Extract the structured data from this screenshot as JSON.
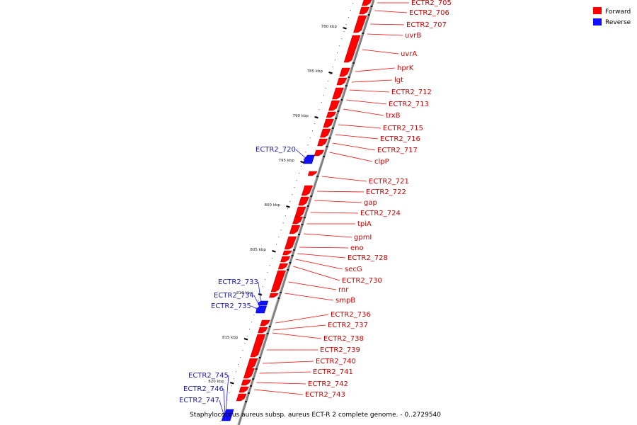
{
  "caption": "Staphylococcus aureus subsp. aureus ECT-R 2 complete genome. - 0..2729540",
  "legend": [
    {
      "label": "Forward",
      "color": "#ff0000"
    },
    {
      "label": "Reverse",
      "color": "#1010ff"
    }
  ],
  "colors": {
    "forward": "#ff0000",
    "reverse": "#1010ff",
    "backbone": "#808080",
    "label_forward": "#cc0000",
    "label_reverse": "#1a1aaa"
  },
  "ticks": [
    "780 kbp",
    "785 kbp",
    "790 kbp",
    "795 kbp",
    "800 kbp",
    "805 kbp",
    "810 kbp",
    "815 kbp",
    "820 kbp"
  ],
  "genes_forward": [
    "ECTR2_705",
    "ECTR2_706",
    "ECTR2_707",
    "uvrB",
    "uvrA",
    "hprK",
    "lgt",
    "ECTR2_712",
    "ECTR2_713",
    "trxB",
    "ECTR2_715",
    "ECTR2_716",
    "ECTR2_717",
    "clpP",
    "ECTR2_721",
    "ECTR2_722",
    "gap",
    "ECTR2_724",
    "tpiA",
    "gpmI",
    "eno",
    "ECTR2_728",
    "secG",
    "ECTR2_730",
    "rnr",
    "smpB",
    "ECTR2_736",
    "ECTR2_737",
    "ECTR2_738",
    "ECTR2_739",
    "ECTR2_740",
    "ECTR2_741",
    "ECTR2_742",
    "ECTR2_743"
  ],
  "genes_reverse": [
    "ECTR2_720",
    "ECTR2_733",
    "ECTR2_734",
    "ECTR2_735",
    "ECTR2_745",
    "ECTR2_746",
    "ECTR2_747"
  ]
}
